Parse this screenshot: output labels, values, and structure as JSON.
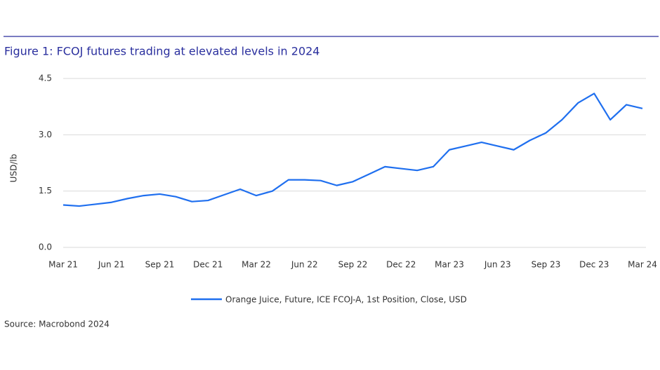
{
  "chart_data": {
    "type": "line",
    "title": "Figure 1: FCOJ futures trading at elevated levels in 2024",
    "y_label": "USD/lb",
    "source": "Source: Macrobond 2024",
    "x": [
      "Mar 21",
      "Apr 21",
      "May 21",
      "Jun 21",
      "Jul 21",
      "Aug 21",
      "Sep 21",
      "Oct 21",
      "Nov 21",
      "Dec 21",
      "Jan 22",
      "Feb 22",
      "Mar 22",
      "Apr 22",
      "May 22",
      "Jun 22",
      "Jul 22",
      "Aug 22",
      "Sep 22",
      "Oct 22",
      "Nov 22",
      "Dec 22",
      "Jan 23",
      "Feb 23",
      "Mar 23",
      "Apr 23",
      "May 23",
      "Jun 23",
      "Jul 23",
      "Aug 23",
      "Sep 23",
      "Oct 23",
      "Nov 23",
      "Dec 23",
      "Jan 24",
      "Feb 24",
      "Mar 24"
    ],
    "series": [
      {
        "name": "Orange Juice, Future, ICE FCOJ-A, 1st Position, Close, USD",
        "color": "#1f6fef",
        "values": [
          1.13,
          1.1,
          1.15,
          1.2,
          1.3,
          1.38,
          1.42,
          1.35,
          1.22,
          1.25,
          1.4,
          1.55,
          1.38,
          1.5,
          1.8,
          1.8,
          1.78,
          1.65,
          1.75,
          1.95,
          2.15,
          2.1,
          2.05,
          2.15,
          2.6,
          2.7,
          2.8,
          2.7,
          2.6,
          2.85,
          3.05,
          3.4,
          3.85,
          4.1,
          3.4,
          3.8,
          3.7
        ]
      }
    ],
    "xticks": [
      "Mar 21",
      "Jun 21",
      "Sep 21",
      "Dec 21",
      "Mar 22",
      "Jun 22",
      "Sep 22",
      "Dec 22",
      "Mar 23",
      "Jun 23",
      "Sep 23",
      "Dec 23",
      "Mar 24"
    ],
    "ylim": [
      0,
      4.5
    ],
    "yticks": [
      {
        "value": 0,
        "label": "0.0"
      },
      1.5,
      {
        "value": 3,
        "label": "3.0"
      },
      4.5
    ],
    "grid": true
  }
}
